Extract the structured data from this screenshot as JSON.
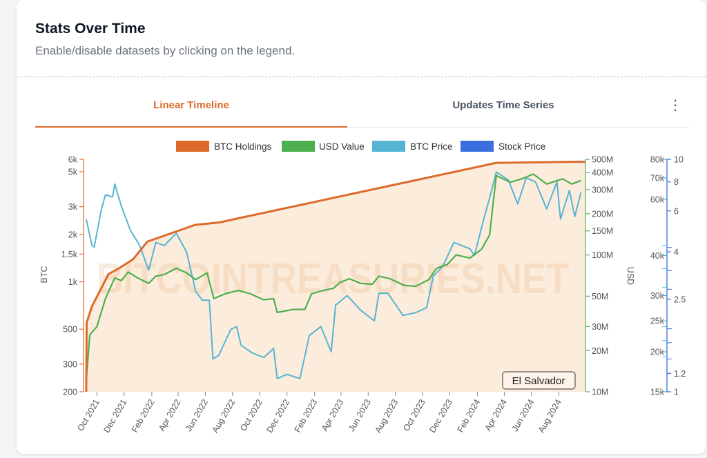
{
  "header": {
    "title": "Stats Over Time",
    "subtitle": "Enable/disable datasets by clicking on the legend."
  },
  "tabs": [
    {
      "label": "Linear Timeline",
      "active": true
    },
    {
      "label": "Updates Time Series",
      "active": false
    }
  ],
  "menu_icon": "kebab-menu-icon",
  "colors": {
    "accent": "#dd6a2a",
    "btc_holdings": "#dd6a2a",
    "usd_value": "#4caf50",
    "btc_price": "#56b4d3",
    "stock_price": "#3b6fe0",
    "area_fill": "#fbe9d6"
  },
  "chart_data": {
    "type": "line",
    "watermark": "BITCOINTREASURIES.NET",
    "badge": "El Salvador",
    "x": {
      "tick_labels": [
        "Oct 2021",
        "Dec 2021",
        "Feb 2022",
        "Apr 2022",
        "Jun 2022",
        "Aug 2022",
        "Oct 2022",
        "Dec 2022",
        "Feb 2023",
        "Apr 2023",
        "Jun 2023",
        "Aug 2023",
        "Oct 2023",
        "Dec 2023",
        "Feb 2024",
        "Apr 2024",
        "Jun 2024",
        "Aug 2024"
      ],
      "range": [
        "2021-09-01",
        "2024-09-30"
      ]
    },
    "axes": {
      "btc": {
        "title": "BTC",
        "scale": "log",
        "range": [
          200,
          6000
        ],
        "ticks": [
          200,
          300,
          500,
          1000,
          1500,
          2000,
          3000,
          5000,
          6000
        ],
        "tick_labels": [
          "200",
          "300",
          "500",
          "1k",
          "1.5k",
          "2k",
          "3k",
          "5k",
          "6k"
        ]
      },
      "usd": {
        "title": "USD",
        "scale": "log",
        "range": [
          10000000,
          500000000
        ],
        "ticks": [
          10000000,
          20000000,
          30000000,
          50000000,
          100000000,
          150000000,
          200000000,
          300000000,
          400000000,
          500000000
        ],
        "tick_labels": [
          "10M",
          "20M",
          "30M",
          "50M",
          "100M",
          "150M",
          "200M",
          "300M",
          "400M",
          "500M"
        ]
      },
      "btc_price": {
        "title": "",
        "scale": "log",
        "range": [
          15000,
          80000
        ],
        "ticks": [
          15000,
          20000,
          25000,
          30000,
          40000,
          60000,
          70000,
          80000
        ],
        "tick_labels": [
          "15k",
          "20k",
          "25k",
          "30k",
          "40k",
          "60k",
          "70k",
          "80k"
        ]
      },
      "stock_price": {
        "title": "",
        "scale": "log",
        "range": [
          1,
          10
        ],
        "ticks": [
          1,
          1.2,
          2.5,
          4,
          6,
          8,
          10
        ],
        "tick_labels": [
          "1",
          "1.2",
          "2.5",
          "4",
          "6",
          "8",
          "10"
        ]
      }
    },
    "legend": [
      "BTC Holdings",
      "USD Value",
      "BTC Price",
      "Stock Price"
    ],
    "legend_position": "top-center",
    "series": [
      {
        "name": "BTC Holdings",
        "axis": "btc",
        "points": [
          [
            "2021-09-07",
            200
          ],
          [
            "2021-09-08",
            550
          ],
          [
            "2021-09-20",
            700
          ],
          [
            "2021-10-27",
            1120
          ],
          [
            "2021-11-20",
            1220
          ],
          [
            "2021-12-21",
            1390
          ],
          [
            "2022-01-22",
            1800
          ],
          [
            "2022-05-09",
            2300
          ],
          [
            "2022-07-01",
            2380
          ],
          [
            "2024-03-14",
            5700
          ],
          [
            "2024-09-30",
            5800
          ]
        ]
      },
      {
        "name": "USD Value",
        "axis": "usd",
        "points": [
          [
            "2021-09-07",
            12000000
          ],
          [
            "2021-09-15",
            26000000
          ],
          [
            "2021-10-01",
            30000000
          ],
          [
            "2021-10-20",
            48000000
          ],
          [
            "2021-11-10",
            68000000
          ],
          [
            "2021-11-25",
            65000000
          ],
          [
            "2021-12-10",
            75000000
          ],
          [
            "2021-12-31",
            68000000
          ],
          [
            "2022-01-25",
            62000000
          ],
          [
            "2022-02-10",
            70000000
          ],
          [
            "2022-03-01",
            72000000
          ],
          [
            "2022-03-28",
            80000000
          ],
          [
            "2022-04-20",
            74000000
          ],
          [
            "2022-05-10",
            66000000
          ],
          [
            "2022-06-05",
            74000000
          ],
          [
            "2022-06-20",
            48000000
          ],
          [
            "2022-07-15",
            52000000
          ],
          [
            "2022-08-14",
            55000000
          ],
          [
            "2022-09-10",
            52000000
          ],
          [
            "2022-10-10",
            47000000
          ],
          [
            "2022-11-01",
            48000000
          ],
          [
            "2022-11-09",
            38000000
          ],
          [
            "2022-12-15",
            40000000
          ],
          [
            "2023-01-10",
            40000000
          ],
          [
            "2023-01-25",
            52000000
          ],
          [
            "2023-02-20",
            55000000
          ],
          [
            "2023-03-15",
            57000000
          ],
          [
            "2023-03-30",
            63000000
          ],
          [
            "2023-04-20",
            67000000
          ],
          [
            "2023-05-15",
            62000000
          ],
          [
            "2023-06-10",
            61000000
          ],
          [
            "2023-06-25",
            70000000
          ],
          [
            "2023-07-20",
            67000000
          ],
          [
            "2023-08-20",
            60000000
          ],
          [
            "2023-09-15",
            59000000
          ],
          [
            "2023-10-15",
            66000000
          ],
          [
            "2023-11-01",
            80000000
          ],
          [
            "2023-11-25",
            85000000
          ],
          [
            "2023-12-15",
            100000000
          ],
          [
            "2024-01-15",
            95000000
          ],
          [
            "2024-02-10",
            110000000
          ],
          [
            "2024-02-28",
            140000000
          ],
          [
            "2024-03-14",
            380000000
          ],
          [
            "2024-04-15",
            340000000
          ],
          [
            "2024-05-10",
            360000000
          ],
          [
            "2024-06-05",
            390000000
          ],
          [
            "2024-07-05",
            330000000
          ],
          [
            "2024-08-10",
            360000000
          ],
          [
            "2024-08-30",
            330000000
          ],
          [
            "2024-09-20",
            350000000
          ]
        ]
      },
      {
        "name": "BTC Price",
        "axis": "btc_price",
        "points": [
          [
            "2021-09-07",
            52000
          ],
          [
            "2021-09-20",
            43000
          ],
          [
            "2021-09-25",
            42500
          ],
          [
            "2021-10-10",
            55000
          ],
          [
            "2021-10-20",
            62000
          ],
          [
            "2021-11-05",
            61000
          ],
          [
            "2021-11-10",
            67000
          ],
          [
            "2021-11-25",
            57000
          ],
          [
            "2021-12-15",
            48000
          ],
          [
            "2022-01-05",
            43000
          ],
          [
            "2022-01-25",
            36000
          ],
          [
            "2022-02-10",
            44000
          ],
          [
            "2022-03-01",
            43000
          ],
          [
            "2022-03-28",
            47000
          ],
          [
            "2022-04-20",
            41000
          ],
          [
            "2022-05-10",
            31000
          ],
          [
            "2022-05-25",
            29000
          ],
          [
            "2022-06-10",
            29000
          ],
          [
            "2022-06-18",
            19000
          ],
          [
            "2022-07-01",
            19500
          ],
          [
            "2022-07-28",
            23500
          ],
          [
            "2022-08-10",
            24000
          ],
          [
            "2022-08-20",
            21000
          ],
          [
            "2022-09-15",
            19800
          ],
          [
            "2022-10-10",
            19200
          ],
          [
            "2022-11-01",
            20500
          ],
          [
            "2022-11-09",
            16500
          ],
          [
            "2022-12-01",
            17000
          ],
          [
            "2022-12-30",
            16500
          ],
          [
            "2023-01-20",
            22500
          ],
          [
            "2023-02-15",
            24000
          ],
          [
            "2023-03-10",
            20000
          ],
          [
            "2023-03-20",
            28000
          ],
          [
            "2023-04-15",
            30000
          ],
          [
            "2023-05-15",
            27000
          ],
          [
            "2023-06-15",
            25000
          ],
          [
            "2023-06-25",
            30500
          ],
          [
            "2023-07-15",
            30500
          ],
          [
            "2023-08-18",
            26000
          ],
          [
            "2023-09-15",
            26500
          ],
          [
            "2023-10-10",
            27500
          ],
          [
            "2023-10-25",
            34500
          ],
          [
            "2023-11-15",
            37000
          ],
          [
            "2023-12-10",
            44000
          ],
          [
            "2024-01-15",
            42000
          ],
          [
            "2024-01-25",
            40000
          ],
          [
            "2024-02-15",
            52000
          ],
          [
            "2024-03-01",
            62000
          ],
          [
            "2024-03-14",
            73000
          ],
          [
            "2024-04-10",
            69000
          ],
          [
            "2024-05-01",
            58000
          ],
          [
            "2024-05-20",
            70000
          ],
          [
            "2024-06-10",
            68000
          ],
          [
            "2024-07-05",
            56000
          ],
          [
            "2024-07-28",
            68000
          ],
          [
            "2024-08-05",
            52000
          ],
          [
            "2024-08-25",
            64000
          ],
          [
            "2024-09-06",
            53000
          ],
          [
            "2024-09-20",
            63000
          ]
        ]
      },
      {
        "name": "Stock Price",
        "axis": "stock_price",
        "points": []
      }
    ]
  }
}
